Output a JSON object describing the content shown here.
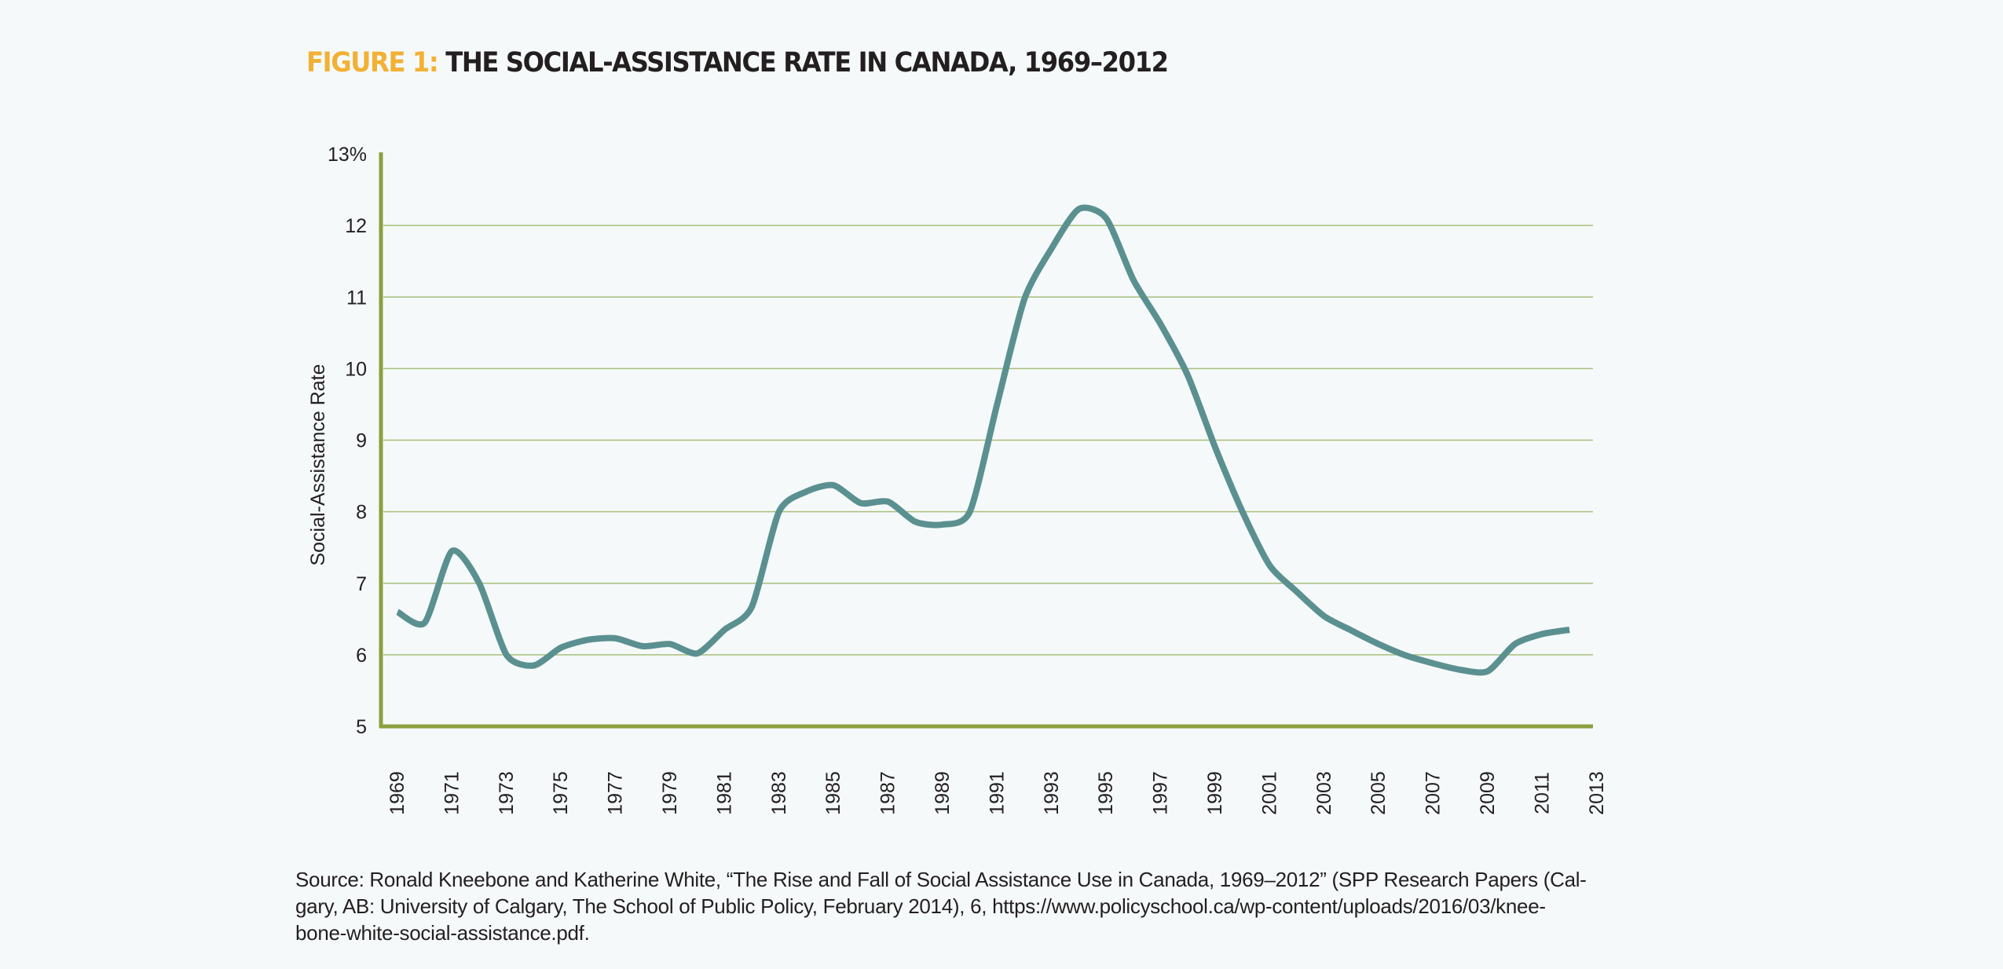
{
  "title": {
    "figure_label": "FIGURE 1:",
    "text": "THE SOCIAL-ASSISTANCE RATE IN CANADA, 1969–2012"
  },
  "colors": {
    "figure_label": "#f2b134",
    "line": "#5b9090",
    "axis": "#8ca03e",
    "grid": "#a9bf7a",
    "background": "#f5f9fa",
    "text": "#231f20"
  },
  "chart_data": {
    "type": "line",
    "title": "THE SOCIAL-ASSISTANCE RATE IN CANADA, 1969–2012",
    "xlabel": "",
    "ylabel": "Social-Assistance Rate",
    "ylim": [
      5,
      13
    ],
    "xlim": [
      1969,
      2013
    ],
    "grid": true,
    "legend": "none",
    "y_ticks": [
      5,
      6,
      7,
      8,
      9,
      10,
      11,
      12,
      13
    ],
    "y_tick_labels": [
      "5",
      "6",
      "7",
      "8",
      "9",
      "10",
      "11",
      "12",
      "13%"
    ],
    "x_ticks": [
      1969,
      1971,
      1973,
      1975,
      1977,
      1979,
      1981,
      1983,
      1985,
      1987,
      1989,
      1991,
      1993,
      1995,
      1997,
      1999,
      2001,
      2003,
      2005,
      2007,
      2009,
      2011,
      2013
    ],
    "x_tick_labels": [
      "1969",
      "1971",
      "1973",
      "1975",
      "1977",
      "1979",
      "1981",
      "1983",
      "1985",
      "1987",
      "1989",
      "1991",
      "1993",
      "1995",
      "1997",
      "1999",
      "2001",
      "2003",
      "2005",
      "2007",
      "2009",
      "2011",
      "2013"
    ],
    "series": [
      {
        "name": "Social-Assistance Rate (%)",
        "x": [
          1969,
          1970,
          1971,
          1972,
          1973,
          1974,
          1975,
          1976,
          1977,
          1978,
          1979,
          1980,
          1981,
          1982,
          1983,
          1984,
          1985,
          1986,
          1987,
          1988,
          1989,
          1990,
          1991,
          1992,
          1993,
          1994,
          1995,
          1996,
          1997,
          1998,
          1999,
          2000,
          2001,
          2002,
          2003,
          2004,
          2005,
          2006,
          2007,
          2008,
          2009,
          2010,
          2011,
          2012
        ],
        "values": [
          6.6,
          6.45,
          7.45,
          7.0,
          6.0,
          5.85,
          6.1,
          6.21,
          6.23,
          6.12,
          6.15,
          6.02,
          6.35,
          6.67,
          8.0,
          8.28,
          8.37,
          8.12,
          8.14,
          7.86,
          7.82,
          8.0,
          9.5,
          10.97,
          11.68,
          12.23,
          12.1,
          11.24,
          10.62,
          9.9,
          8.9,
          8.0,
          7.25,
          6.88,
          6.54,
          6.34,
          6.15,
          5.99,
          5.88,
          5.79,
          5.77,
          6.15,
          6.29,
          6.35
        ]
      }
    ]
  },
  "source": {
    "lines": [
      "Source: Ronald Kneebone and Katherine White, “The Rise and Fall of Social Assistance Use in Canada, 1969–2012” (SPP Research Papers (Cal-",
      "gary, AB: University of Calgary, The School of Public Policy, February 2014), 6, https://www.policyschool.ca/wp-content/uploads/2016/03/knee-",
      "bone-white-social-assistance.pdf."
    ]
  }
}
